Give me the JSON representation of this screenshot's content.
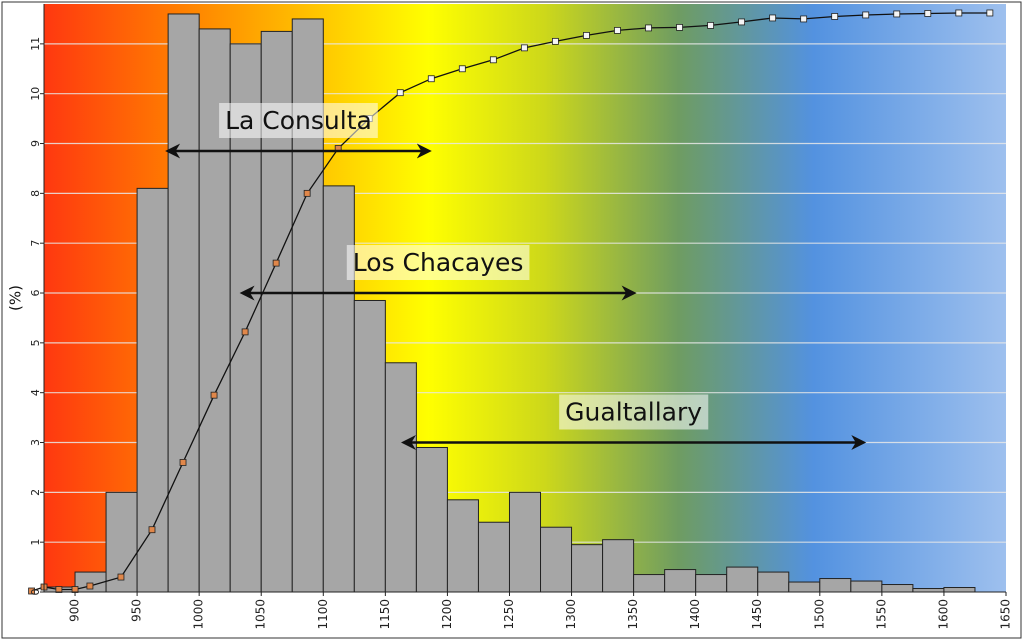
{
  "chart_data": {
    "type": "bar",
    "ylabel": "(%)",
    "xlabel": "",
    "title": "",
    "xlim": [
      875,
      1650
    ],
    "ylim": [
      0,
      11.8
    ],
    "bin_width": 25,
    "x_ticks": [
      900,
      950,
      1000,
      1050,
      1100,
      1150,
      1200,
      1250,
      1300,
      1350,
      1400,
      1450,
      1500,
      1550,
      1600,
      1650
    ],
    "y_ticks": [
      0,
      1,
      2,
      3,
      4,
      5,
      6,
      7,
      8,
      9,
      10,
      11
    ],
    "bins": [
      {
        "x0": 875,
        "value": 0.1
      },
      {
        "x0": 900,
        "value": 0.4
      },
      {
        "x0": 925,
        "value": 2.0
      },
      {
        "x0": 950,
        "value": 8.1
      },
      {
        "x0": 975,
        "value": 11.6
      },
      {
        "x0": 1000,
        "value": 11.3
      },
      {
        "x0": 1025,
        "value": 11.0
      },
      {
        "x0": 1050,
        "value": 11.25
      },
      {
        "x0": 1075,
        "value": 11.5
      },
      {
        "x0": 1100,
        "value": 8.15
      },
      {
        "x0": 1125,
        "value": 5.85
      },
      {
        "x0": 1150,
        "value": 4.6
      },
      {
        "x0": 1175,
        "value": 2.9
      },
      {
        "x0": 1200,
        "value": 1.85
      },
      {
        "x0": 1225,
        "value": 1.4
      },
      {
        "x0": 1250,
        "value": 2.0
      },
      {
        "x0": 1275,
        "value": 1.3
      },
      {
        "x0": 1300,
        "value": 0.95
      },
      {
        "x0": 1325,
        "value": 1.05
      },
      {
        "x0": 1350,
        "value": 0.35
      },
      {
        "x0": 1375,
        "value": 0.45
      },
      {
        "x0": 1400,
        "value": 0.35
      },
      {
        "x0": 1425,
        "value": 0.5
      },
      {
        "x0": 1450,
        "value": 0.4
      },
      {
        "x0": 1475,
        "value": 0.2
      },
      {
        "x0": 1500,
        "value": 0.27
      },
      {
        "x0": 1525,
        "value": 0.22
      },
      {
        "x0": 1550,
        "value": 0.15
      },
      {
        "x0": 1575,
        "value": 0.07
      },
      {
        "x0": 1600,
        "value": 0.09
      }
    ],
    "cumulative_series": {
      "x": [
        865,
        875,
        887,
        900,
        912,
        937,
        962,
        987,
        1012,
        1037,
        1062,
        1087,
        1112,
        1137,
        1162,
        1187,
        1212,
        1237,
        1262,
        1287,
        1312,
        1337,
        1362,
        1387,
        1412,
        1437,
        1462,
        1487,
        1512,
        1537,
        1562,
        1587,
        1612,
        1637
      ],
      "y": [
        0.02,
        0.1,
        0.05,
        0.05,
        0.12,
        0.3,
        1.25,
        2.6,
        3.95,
        5.22,
        6.6,
        8.0,
        8.9,
        9.5,
        10.02,
        10.3,
        10.5,
        10.68,
        10.92,
        11.05,
        11.17,
        11.27,
        11.32,
        11.33,
        11.37,
        11.44,
        11.52,
        11.5,
        11.55,
        11.58,
        11.6,
        11.61,
        11.62,
        11.62
      ]
    },
    "annotations": [
      {
        "label": "La Consulta",
        "x_start": 975,
        "x_end": 1185,
        "y": 8.85
      },
      {
        "label": "Los Chacayes",
        "x_start": 1035,
        "x_end": 1350,
        "y": 6.0
      },
      {
        "label": "Gualtallary",
        "x_start": 1165,
        "x_end": 1535,
        "y": 3.0
      }
    ],
    "background_gradient": [
      "#ff3810",
      "#ff7e00",
      "#ffff00",
      "#cdd81a",
      "#6e9c62",
      "#5392e0",
      "#9ec0ee"
    ],
    "colors": {
      "bar_fill": "#a6a6a6",
      "bar_stroke": "#222222",
      "line": "#111111",
      "marker_low": "#e0874a",
      "marker_high": "#f5f5f5",
      "arrow": "#111111",
      "grid": "#e8e8e8"
    }
  }
}
